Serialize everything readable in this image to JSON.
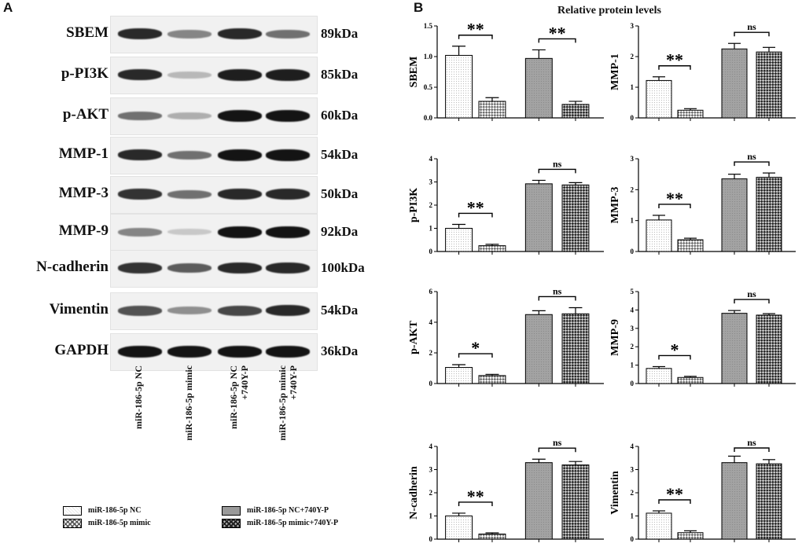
{
  "panel_a_label": "A",
  "panel_b_label": "B",
  "blot": {
    "rows": [
      {
        "protein": "SBEM",
        "kda": "89kDa",
        "intensity": [
          0.9,
          0.45,
          0.9,
          0.55
        ]
      },
      {
        "protein": "p-PI3K",
        "kda": "85kDa",
        "intensity": [
          0.9,
          0.2,
          0.95,
          0.95
        ]
      },
      {
        "protein": "p-AKT",
        "kda": "60kDa",
        "intensity": [
          0.55,
          0.25,
          1.0,
          1.0
        ]
      },
      {
        "protein": "MMP-1",
        "kda": "54kDa",
        "intensity": [
          0.9,
          0.55,
          1.0,
          1.0
        ]
      },
      {
        "protein": "MMP-3",
        "kda": "50kDa",
        "intensity": [
          0.85,
          0.55,
          0.9,
          0.9
        ]
      },
      {
        "protein": "MMP-9",
        "kda": "92kDa",
        "intensity": [
          0.45,
          0.12,
          1.0,
          1.0
        ]
      },
      {
        "protein": "N-cadherin",
        "kda": "100kDa",
        "intensity": [
          0.85,
          0.65,
          0.9,
          0.9
        ]
      },
      {
        "protein": "Vimentin",
        "kda": "54kDa",
        "intensity": [
          0.7,
          0.4,
          0.75,
          0.9
        ]
      },
      {
        "protein": "GAPDH",
        "kda": "36kDa",
        "intensity": [
          1.0,
          1.0,
          1.0,
          1.0
        ]
      }
    ],
    "lanes": [
      {
        "line1": "miR-186-5p NC",
        "line2": ""
      },
      {
        "line1": "miR-186-5p mimic",
        "line2": ""
      },
      {
        "line1": "miR-186-5p NC",
        "line2": "+740Y-P"
      },
      {
        "line1": "miR-186-5p mimic",
        "line2": "+740Y-P"
      }
    ]
  },
  "legend": [
    {
      "label": "miR-186-5p NC",
      "pattern": "dots"
    },
    {
      "label": "miR-186-5p mimic",
      "pattern": "check"
    },
    {
      "label": "miR-186-5p NC+740Y-P",
      "pattern": "grey"
    },
    {
      "label": "miR-186-5p mimic+740Y-P",
      "pattern": "darkcheck"
    }
  ],
  "chart_title": "Relative protein levels",
  "chart_data": [
    {
      "type": "bar",
      "ylabel": "SBEM",
      "ylim": [
        0,
        1.5
      ],
      "yticks": [
        "0.0",
        "0.5",
        "1.0",
        "1.5"
      ],
      "values": [
        1.02,
        0.27,
        0.97,
        0.22
      ],
      "errors": [
        0.15,
        0.06,
        0.14,
        0.05
      ],
      "sig": [
        {
          "a": 0,
          "b": 1,
          "label": "**"
        },
        {
          "a": 2,
          "b": 3,
          "label": "**"
        }
      ]
    },
    {
      "type": "bar",
      "ylabel": "MMP-1",
      "ylim": [
        0,
        3
      ],
      "yticks": [
        "0",
        "1",
        "2",
        "3"
      ],
      "values": [
        1.22,
        0.25,
        2.25,
        2.15
      ],
      "errors": [
        0.12,
        0.05,
        0.18,
        0.15
      ],
      "sig": [
        {
          "a": 0,
          "b": 1,
          "label": "**"
        },
        {
          "a": 2,
          "b": 3,
          "label": "ns"
        }
      ]
    },
    {
      "type": "bar",
      "ylabel": "p-PI3K",
      "ylim": [
        0,
        4
      ],
      "yticks": [
        "0",
        "1",
        "2",
        "3",
        "4"
      ],
      "values": [
        1.0,
        0.25,
        2.92,
        2.87
      ],
      "errors": [
        0.17,
        0.06,
        0.15,
        0.1
      ],
      "sig": [
        {
          "a": 0,
          "b": 1,
          "label": "**"
        },
        {
          "a": 2,
          "b": 3,
          "label": "ns"
        }
      ]
    },
    {
      "type": "bar",
      "ylabel": "MMP-3",
      "ylim": [
        0,
        3
      ],
      "yticks": [
        "0",
        "1",
        "2",
        "3"
      ],
      "values": [
        1.02,
        0.38,
        2.35,
        2.4
      ],
      "errors": [
        0.15,
        0.05,
        0.15,
        0.14
      ],
      "sig": [
        {
          "a": 0,
          "b": 1,
          "label": "**"
        },
        {
          "a": 2,
          "b": 3,
          "label": "ns"
        }
      ]
    },
    {
      "type": "bar",
      "ylabel": "p-AKT",
      "ylim": [
        0,
        6
      ],
      "yticks": [
        "0",
        "2",
        "4",
        "6"
      ],
      "values": [
        1.05,
        0.52,
        4.5,
        4.55
      ],
      "errors": [
        0.18,
        0.08,
        0.25,
        0.4
      ],
      "sig": [
        {
          "a": 0,
          "b": 1,
          "label": "*"
        },
        {
          "a": 2,
          "b": 3,
          "label": "ns"
        }
      ]
    },
    {
      "type": "bar",
      "ylabel": "MMP-9",
      "ylim": [
        0,
        5
      ],
      "yticks": [
        "0",
        "1",
        "2",
        "3",
        "4",
        "5"
      ],
      "values": [
        0.82,
        0.33,
        3.82,
        3.72
      ],
      "errors": [
        0.1,
        0.06,
        0.15,
        0.08
      ],
      "sig": [
        {
          "a": 0,
          "b": 1,
          "label": "*"
        },
        {
          "a": 2,
          "b": 3,
          "label": "ns"
        }
      ]
    },
    {
      "type": "bar",
      "ylabel": "N-cadherin",
      "ylim": [
        0,
        4
      ],
      "yticks": [
        "0",
        "1",
        "2",
        "3",
        "4"
      ],
      "values": [
        1.0,
        0.22,
        3.3,
        3.2
      ],
      "errors": [
        0.12,
        0.05,
        0.15,
        0.15
      ],
      "sig": [
        {
          "a": 0,
          "b": 1,
          "label": "**"
        },
        {
          "a": 2,
          "b": 3,
          "label": "ns"
        }
      ]
    },
    {
      "type": "bar",
      "ylabel": "Vimentin",
      "ylim": [
        0,
        4
      ],
      "yticks": [
        "0",
        "1",
        "2",
        "3",
        "4"
      ],
      "values": [
        1.12,
        0.28,
        3.3,
        3.25
      ],
      "errors": [
        0.1,
        0.08,
        0.28,
        0.18
      ],
      "sig": [
        {
          "a": 0,
          "b": 1,
          "label": "**"
        },
        {
          "a": 2,
          "b": 3,
          "label": "ns"
        }
      ]
    }
  ]
}
